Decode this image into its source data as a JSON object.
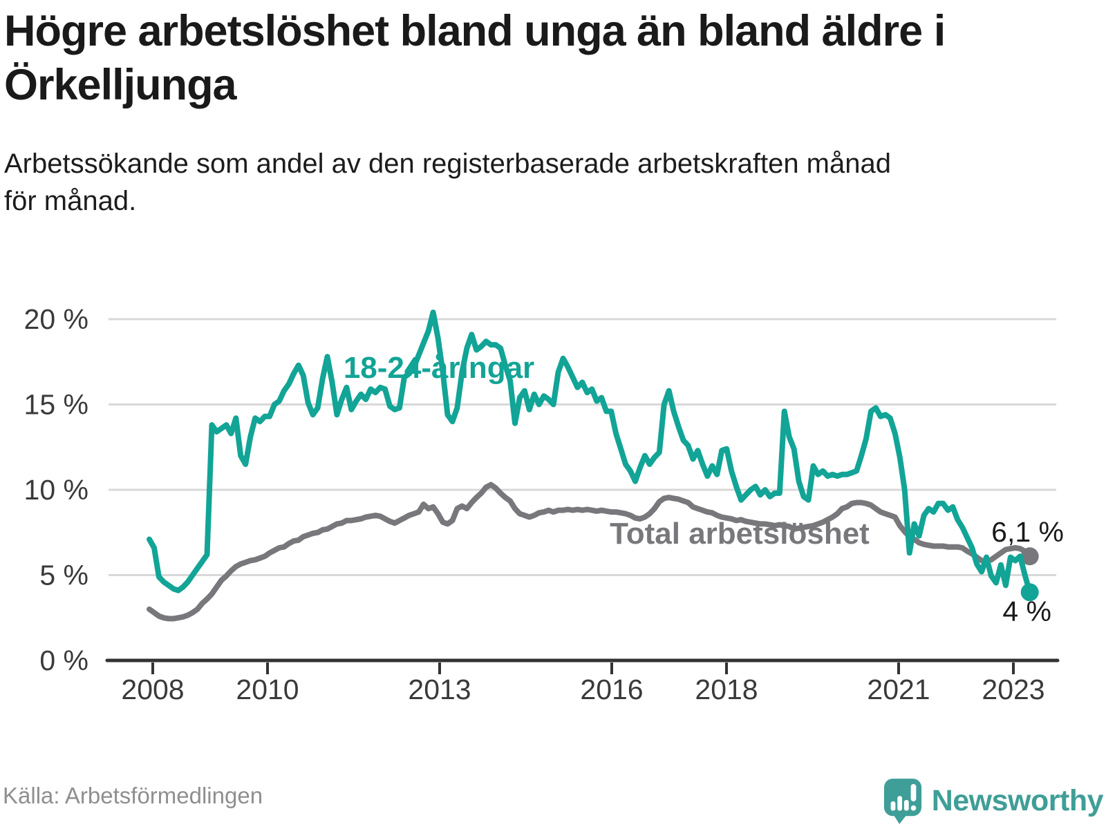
{
  "header": {
    "title": "Högre arbetslöshet bland unga än bland äldre i Örkelljunga",
    "title_lines": [
      "Högre arbetslöshet bland unga än bland äldre i",
      "Örkelljunga"
    ],
    "subtitle_lines": [
      "Arbetssökande som andel av den registerbaserade arbetskraften månad",
      "för månad."
    ]
  },
  "footer": {
    "source": "Källa: Arbetsförmedlingen",
    "logo_text": "Newsworthy"
  },
  "colors": {
    "young": "#12a496",
    "total": "#78787c",
    "grid": "#d8d8d8",
    "axis": "#333333",
    "end_label": "#1a1a1a",
    "logo_teal": "#3f9e97"
  },
  "chart_data": {
    "type": "line",
    "title": "",
    "xlabel": "",
    "ylabel": "",
    "x_start_year": 2008,
    "x_months_per_point": 1,
    "ylim": [
      0,
      21
    ],
    "grid": "horizontal",
    "y_ticks": [
      {
        "label": "20 %",
        "value": 20
      },
      {
        "label": "15 %",
        "value": 15
      },
      {
        "label": "10 %",
        "value": 10
      },
      {
        "label": "5 %",
        "value": 5
      },
      {
        "label": "0 %",
        "value": 0
      }
    ],
    "x_ticks": [
      {
        "label": "2008",
        "year": 2008
      },
      {
        "label": "2010",
        "year": 2010
      },
      {
        "label": "2013",
        "year": 2013
      },
      {
        "label": "2016",
        "year": 2016
      },
      {
        "label": "2018",
        "year": 2018
      },
      {
        "label": "2021",
        "year": 2021
      },
      {
        "label": "2023",
        "year": 2023
      }
    ],
    "series": [
      {
        "name": "18-24-åringar",
        "color": "#12a496",
        "end_label": "4 %",
        "end_value": 4.0,
        "values": [
          7.1,
          6.6,
          4.9,
          4.6,
          4.4,
          4.2,
          4.1,
          4.3,
          4.6,
          5.0,
          5.4,
          5.8,
          6.2,
          13.8,
          13.4,
          13.6,
          13.8,
          13.3,
          14.2,
          12.0,
          11.5,
          13.1,
          14.2,
          14.0,
          14.3,
          14.3,
          15.0,
          15.2,
          15.8,
          16.2,
          16.8,
          17.3,
          16.7,
          15.1,
          14.4,
          14.8,
          16.5,
          17.8,
          16.3,
          14.4,
          15.3,
          16.0,
          14.7,
          15.2,
          15.6,
          15.3,
          15.9,
          15.7,
          16.0,
          15.9,
          14.9,
          14.7,
          14.8,
          16.6,
          16.8,
          17.2,
          17.9,
          18.6,
          19.3,
          20.4,
          18.9,
          16.9,
          14.4,
          14.0,
          14.8,
          16.9,
          18.3,
          19.1,
          18.2,
          18.4,
          18.7,
          18.5,
          18.5,
          18.3,
          17.3,
          16.4,
          13.9,
          15.4,
          15.8,
          14.7,
          15.6,
          15.0,
          15.5,
          15.3,
          15.0,
          16.9,
          17.7,
          17.2,
          16.6,
          16.0,
          16.3,
          15.7,
          15.9,
          15.2,
          15.4,
          14.6,
          14.6,
          13.3,
          12.4,
          11.5,
          11.1,
          10.5,
          11.3,
          12.0,
          11.5,
          11.9,
          12.2,
          15.0,
          15.8,
          14.6,
          13.7,
          12.9,
          12.6,
          11.8,
          12.3,
          11.5,
          10.8,
          11.4,
          10.9,
          12.3,
          12.4,
          11.1,
          10.2,
          9.4,
          9.7,
          10.0,
          10.2,
          9.7,
          10.0,
          9.6,
          9.8,
          9.8,
          14.6,
          13.1,
          12.4,
          10.5,
          9.6,
          9.4,
          11.4,
          10.9,
          11.1,
          10.8,
          10.9,
          10.8,
          10.9,
          10.9,
          11.0,
          11.1,
          12.0,
          13.0,
          14.6,
          14.8,
          14.3,
          14.4,
          14.2,
          13.3,
          11.9,
          10.0,
          6.3,
          8.0,
          7.3,
          8.5,
          8.9,
          8.7,
          9.2,
          9.2,
          8.8,
          9.0,
          8.25,
          7.8,
          7.2,
          6.6,
          5.65,
          5.2,
          6.05,
          4.95,
          4.55,
          5.6,
          4.4,
          6.05,
          5.85,
          6.1,
          5.0,
          4.0
        ]
      },
      {
        "name": "Total arbetslöshet",
        "color": "#78787c",
        "end_label": "6,1 %",
        "end_value": 6.1,
        "values": [
          3.0,
          2.8,
          2.6,
          2.5,
          2.45,
          2.45,
          2.5,
          2.55,
          2.65,
          2.8,
          3.0,
          3.35,
          3.6,
          3.9,
          4.3,
          4.7,
          4.95,
          5.25,
          5.5,
          5.65,
          5.75,
          5.85,
          5.9,
          6.0,
          6.1,
          6.3,
          6.45,
          6.6,
          6.65,
          6.85,
          7.0,
          7.05,
          7.25,
          7.35,
          7.45,
          7.5,
          7.65,
          7.7,
          7.85,
          8.0,
          8.05,
          8.2,
          8.2,
          8.25,
          8.3,
          8.4,
          8.45,
          8.5,
          8.45,
          8.3,
          8.15,
          8.05,
          8.2,
          8.35,
          8.5,
          8.6,
          8.7,
          9.15,
          8.9,
          9.0,
          8.6,
          8.1,
          8.0,
          8.2,
          8.9,
          9.05,
          8.9,
          9.25,
          9.55,
          9.8,
          10.15,
          10.3,
          10.1,
          9.8,
          9.55,
          9.35,
          8.9,
          8.6,
          8.5,
          8.4,
          8.5,
          8.65,
          8.7,
          8.8,
          8.7,
          8.8,
          8.8,
          8.85,
          8.8,
          8.85,
          8.8,
          8.85,
          8.8,
          8.75,
          8.8,
          8.75,
          8.7,
          8.7,
          8.65,
          8.6,
          8.5,
          8.35,
          8.3,
          8.4,
          8.6,
          8.9,
          9.3,
          9.5,
          9.55,
          9.5,
          9.45,
          9.35,
          9.25,
          9.0,
          8.9,
          8.8,
          8.7,
          8.65,
          8.5,
          8.4,
          8.35,
          8.3,
          8.2,
          8.25,
          8.15,
          8.1,
          8.05,
          8.0,
          8.0,
          7.95,
          7.9,
          7.95,
          7.9,
          7.85,
          7.7,
          7.75,
          7.8,
          7.85,
          7.9,
          8.0,
          8.1,
          8.25,
          8.4,
          8.6,
          8.9,
          9.0,
          9.2,
          9.25,
          9.25,
          9.2,
          9.1,
          8.9,
          8.7,
          8.6,
          8.5,
          8.4,
          7.9,
          7.55,
          7.25,
          7.1,
          6.9,
          6.8,
          6.75,
          6.7,
          6.7,
          6.7,
          6.65,
          6.65,
          6.65,
          6.6,
          6.4,
          6.25,
          6.05,
          5.85,
          5.85,
          5.9,
          6.1,
          6.3,
          6.5,
          6.55,
          6.6,
          6.55,
          6.4,
          6.1
        ]
      }
    ]
  }
}
